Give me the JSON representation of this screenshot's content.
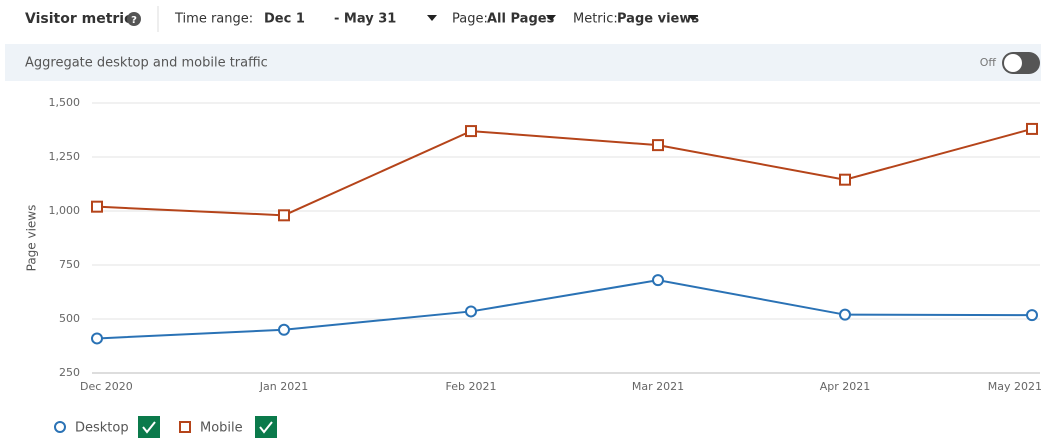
{
  "header": {
    "title": "Visitor metrics",
    "time_range_label": "Time range:",
    "start": "Dec 1",
    "end": "- May 31",
    "page_label": "Page:",
    "page_value": "All Pages",
    "metric_label": "Metric:",
    "metric_value": "Page views"
  },
  "banner": {
    "text": "Aggregate desktop and mobile traffic",
    "toggle": "Off"
  },
  "chart_data": {
    "type": "line",
    "ylabel": "Page views",
    "categories": [
      "Dec 2020",
      "Jan 2021",
      "Feb 2021",
      "Mar 2021",
      "Apr 2021",
      "May 2021"
    ],
    "series": [
      {
        "name": "Desktop",
        "color": "#2a72b5",
        "marker": "circle",
        "values": [
          410,
          450,
          535,
          680,
          520,
          518
        ]
      },
      {
        "name": "Mobile",
        "color": "#b5441a",
        "marker": "square",
        "values": [
          1020,
          980,
          1370,
          1305,
          1145,
          1380
        ]
      }
    ],
    "ylim": [
      250,
      1500
    ],
    "yticks": [
      250,
      500,
      750,
      {
        "value": 1000,
        "label": "1,000"
      },
      {
        "value": 1250,
        "label": "1,250"
      },
      {
        "value": 1500,
        "label": "1,500"
      }
    ],
    "grid": true
  }
}
